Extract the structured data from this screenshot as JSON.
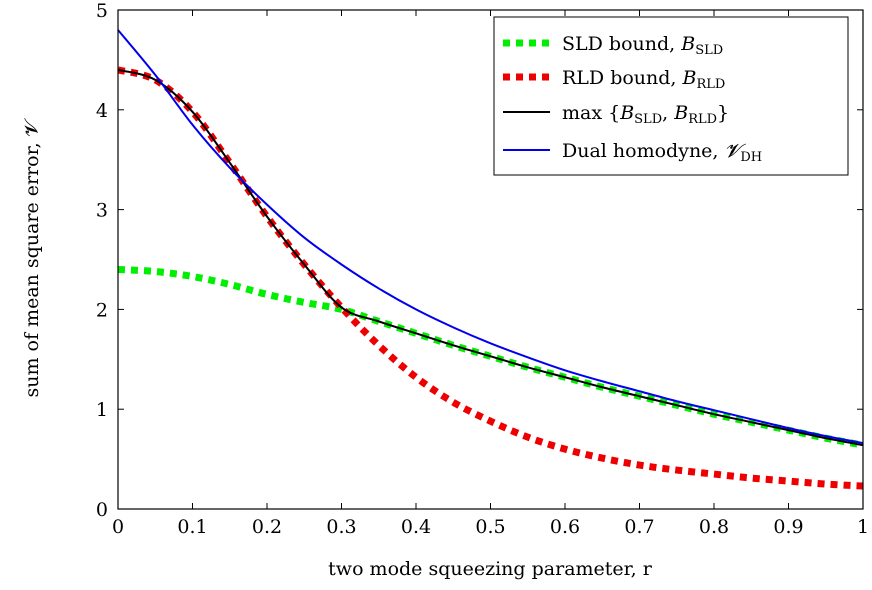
{
  "chart_data": {
    "type": "line",
    "xlabel": "two mode squeezing parameter, r",
    "ylabel": "sum of mean square error, 𝓥",
    "xlim": [
      0,
      1
    ],
    "ylim": [
      0,
      5
    ],
    "x_ticks": [
      0,
      0.1,
      0.2,
      0.3,
      0.4,
      0.5,
      0.6,
      0.7,
      0.8,
      0.9,
      1
    ],
    "x_tick_labels": [
      "0",
      "0.1",
      "0.2",
      "0.3",
      "0.4",
      "0.5",
      "0.6",
      "0.7",
      "0.8",
      "0.9",
      "1"
    ],
    "y_ticks": [
      0,
      1,
      2,
      3,
      4,
      5
    ],
    "y_tick_labels": [
      "0",
      "1",
      "2",
      "3",
      "4",
      "5"
    ],
    "grid": false,
    "legend_position": "top-right",
    "x": [
      0,
      0.05,
      0.1,
      0.15,
      0.2,
      0.25,
      0.3,
      0.35,
      0.4,
      0.45,
      0.5,
      0.55,
      0.6,
      0.65,
      0.7,
      0.75,
      0.8,
      0.85,
      0.9,
      0.95,
      1
    ],
    "series": [
      {
        "name": "SLD bound, B_SLD",
        "legend_text": "SLD bound, ",
        "legend_math": "B",
        "legend_sub": "SLD",
        "color": "#00ee00",
        "style": "dotted",
        "values": [
          2.4,
          2.38,
          2.33,
          2.25,
          2.15,
          2.07,
          2.0,
          1.88,
          1.76,
          1.64,
          1.53,
          1.42,
          1.32,
          1.22,
          1.13,
          1.04,
          0.95,
          0.87,
          0.79,
          0.71,
          0.64
        ]
      },
      {
        "name": "RLD bound, B_RLD",
        "legend_text": "RLD bound, ",
        "legend_math": "B",
        "legend_sub": "RLD",
        "color": "#ee0000",
        "style": "dotted",
        "values": [
          4.4,
          4.3,
          3.98,
          3.47,
          2.93,
          2.45,
          2.02,
          1.64,
          1.32,
          1.07,
          0.88,
          0.72,
          0.6,
          0.51,
          0.44,
          0.39,
          0.35,
          0.31,
          0.28,
          0.25,
          0.23
        ]
      },
      {
        "name": "max {B_SLD, B_RLD}",
        "legend_text": "max {",
        "legend_math": "B",
        "legend_sub": "SLD",
        "legend_math2": "B",
        "legend_sub2": "RLD",
        "color": "#000000",
        "style": "solid",
        "values": [
          4.4,
          4.3,
          3.98,
          3.47,
          2.93,
          2.45,
          2.02,
          1.88,
          1.76,
          1.64,
          1.53,
          1.42,
          1.32,
          1.22,
          1.13,
          1.04,
          0.95,
          0.87,
          0.79,
          0.71,
          0.64
        ]
      },
      {
        "name": "Dual homodyne, V_DH",
        "legend_text": "Dual homodyne, ",
        "legend_math": "𝓥",
        "legend_sub": "DH",
        "color": "#0000ee",
        "style": "solid",
        "values": [
          4.8,
          4.35,
          3.85,
          3.42,
          3.05,
          2.72,
          2.45,
          2.21,
          2.0,
          1.82,
          1.66,
          1.52,
          1.39,
          1.28,
          1.18,
          1.08,
          0.99,
          0.9,
          0.81,
          0.73,
          0.66
        ]
      }
    ]
  }
}
